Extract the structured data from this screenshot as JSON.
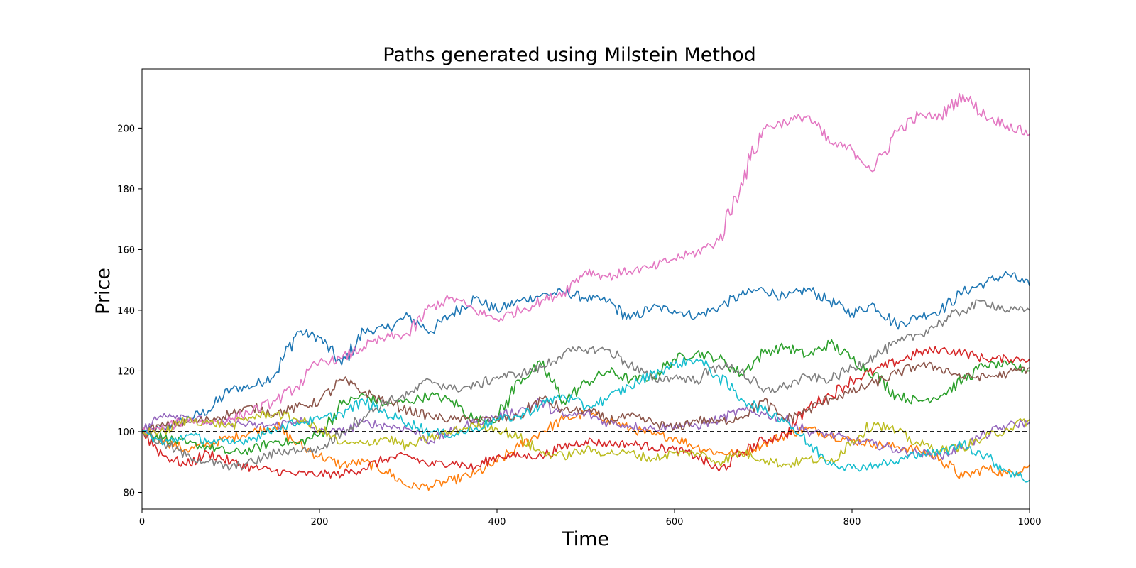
{
  "chart_data": {
    "type": "line",
    "title": "Paths generated using Milstein Method",
    "xlabel": "Time",
    "ylabel": "Price",
    "xlim": [
      0,
      1000
    ],
    "ylim": [
      74.5,
      219.5
    ],
    "xticks": [
      0,
      200,
      400,
      600,
      800,
      1000
    ],
    "yticks": [
      80,
      100,
      120,
      140,
      160,
      180,
      200
    ],
    "grid": false,
    "legend": "none",
    "reference_line": {
      "y": 100,
      "style": "dashed",
      "color": "#000000"
    },
    "series": [
      {
        "color": "#1f77b4",
        "x": [
          0,
          25,
          50,
          75,
          100,
          125,
          150,
          175,
          200,
          225,
          250,
          275,
          300,
          325,
          350,
          375,
          400,
          425,
          450,
          475,
          500,
          525,
          550,
          575,
          600,
          625,
          650,
          675,
          700,
          725,
          750,
          775,
          800,
          825,
          850,
          875,
          900,
          925,
          950,
          975,
          1000
        ],
        "y": [
          100,
          101,
          104,
          107,
          114,
          115,
          119,
          133,
          131,
          122,
          133,
          134,
          138,
          133,
          139,
          144,
          140,
          143,
          145,
          146,
          144,
          143,
          137,
          141,
          140,
          138,
          141,
          145,
          147,
          144,
          147,
          143,
          139,
          142,
          135,
          138,
          140,
          146,
          149,
          152,
          148
        ]
      },
      {
        "color": "#ff7f0e",
        "x": [
          0,
          25,
          50,
          75,
          100,
          125,
          150,
          175,
          200,
          225,
          250,
          275,
          300,
          325,
          350,
          375,
          400,
          425,
          450,
          475,
          500,
          525,
          550,
          575,
          600,
          625,
          650,
          675,
          700,
          725,
          750,
          775,
          800,
          825,
          850,
          875,
          900,
          925,
          950,
          975,
          1000
        ],
        "y": [
          100,
          97,
          94,
          96,
          98,
          100,
          102,
          96,
          92,
          89,
          90,
          87,
          82,
          82,
          84,
          86,
          90,
          95,
          100,
          104,
          106,
          104,
          101,
          99,
          98,
          95,
          93,
          93,
          96,
          99,
          101,
          99,
          97,
          96,
          95,
          94,
          91,
          85,
          88,
          86,
          89
        ]
      },
      {
        "color": "#2ca02c",
        "x": [
          0,
          25,
          50,
          75,
          100,
          125,
          150,
          175,
          200,
          225,
          250,
          275,
          300,
          325,
          350,
          375,
          400,
          425,
          450,
          475,
          500,
          525,
          550,
          575,
          600,
          625,
          650,
          675,
          700,
          725,
          750,
          775,
          800,
          825,
          850,
          875,
          900,
          925,
          950,
          975,
          1000
        ],
        "y": [
          100,
          98,
          96,
          95,
          93,
          94,
          97,
          96,
          99,
          109,
          112,
          109,
          110,
          112,
          110,
          104,
          104,
          117,
          122,
          110,
          116,
          120,
          117,
          118,
          124,
          126,
          124,
          119,
          126,
          128,
          125,
          129,
          124,
          119,
          112,
          110,
          112,
          117,
          122,
          122,
          120
        ]
      },
      {
        "color": "#d62728",
        "x": [
          0,
          25,
          50,
          75,
          100,
          125,
          150,
          175,
          200,
          225,
          250,
          275,
          300,
          325,
          350,
          375,
          400,
          425,
          450,
          475,
          500,
          525,
          550,
          575,
          600,
          625,
          650,
          675,
          700,
          725,
          750,
          775,
          800,
          825,
          850,
          875,
          900,
          925,
          950,
          975,
          1000
        ],
        "y": [
          100,
          92,
          89,
          93,
          90,
          88,
          87,
          86,
          86,
          86,
          88,
          91,
          92,
          89,
          90,
          88,
          92,
          92,
          92,
          95,
          97,
          96,
          96,
          95,
          94,
          92,
          87,
          93,
          97,
          99,
          108,
          112,
          117,
          120,
          123,
          126,
          127,
          126,
          124,
          124,
          124
        ]
      },
      {
        "color": "#9467bd",
        "x": [
          0,
          25,
          50,
          75,
          100,
          125,
          150,
          175,
          200,
          225,
          250,
          275,
          300,
          325,
          350,
          375,
          400,
          425,
          450,
          475,
          500,
          525,
          550,
          575,
          600,
          625,
          650,
          675,
          700,
          725,
          750,
          775,
          800,
          825,
          850,
          875,
          900,
          925,
          950,
          975,
          1000
        ],
        "y": [
          100,
          106,
          105,
          103,
          103,
          102,
          102,
          104,
          100,
          100,
          103,
          102,
          101,
          97,
          100,
          103,
          105,
          107,
          110,
          105,
          106,
          103,
          102,
          101,
          102,
          102,
          104,
          107,
          106,
          104,
          100,
          99,
          97,
          96,
          94,
          93,
          92,
          95,
          99,
          102,
          103
        ]
      },
      {
        "color": "#8c564b",
        "x": [
          0,
          25,
          50,
          75,
          100,
          125,
          150,
          175,
          200,
          225,
          250,
          275,
          300,
          325,
          350,
          375,
          400,
          425,
          450,
          475,
          500,
          525,
          550,
          575,
          600,
          625,
          650,
          675,
          700,
          725,
          750,
          775,
          800,
          825,
          850,
          875,
          900,
          925,
          950,
          975,
          1000
        ],
        "y": [
          100,
          102,
          103,
          104,
          106,
          108,
          106,
          108,
          110,
          117,
          113,
          110,
          107,
          105,
          104,
          104,
          104,
          105,
          111,
          107,
          107,
          104,
          105,
          103,
          101,
          104,
          103,
          105,
          110,
          104,
          107,
          111,
          113,
          116,
          119,
          122,
          121,
          118,
          118,
          119,
          121
        ]
      },
      {
        "color": "#e377c2",
        "x": [
          0,
          25,
          50,
          75,
          100,
          125,
          150,
          175,
          200,
          225,
          250,
          275,
          300,
          325,
          350,
          375,
          400,
          425,
          450,
          475,
          500,
          525,
          550,
          575,
          600,
          625,
          650,
          675,
          700,
          725,
          750,
          775,
          800,
          825,
          850,
          875,
          900,
          925,
          950,
          975,
          1000
        ],
        "y": [
          100,
          101,
          104,
          103,
          104,
          107,
          110,
          115,
          123,
          124,
          128,
          131,
          132,
          141,
          144,
          140,
          137,
          140,
          143,
          146,
          153,
          151,
          153,
          154,
          157,
          159,
          163,
          182,
          200,
          202,
          204,
          195,
          193,
          186,
          199,
          204,
          204,
          211,
          204,
          201,
          198
        ]
      },
      {
        "color": "#7f7f7f",
        "x": [
          0,
          25,
          50,
          75,
          100,
          125,
          150,
          175,
          200,
          225,
          250,
          275,
          300,
          325,
          350,
          375,
          400,
          425,
          450,
          475,
          500,
          525,
          550,
          575,
          600,
          625,
          650,
          675,
          700,
          725,
          750,
          775,
          800,
          825,
          850,
          875,
          900,
          925,
          950,
          975,
          1000
        ],
        "y": [
          100,
          96,
          92,
          90,
          88,
          90,
          93,
          94,
          94,
          100,
          105,
          110,
          112,
          117,
          114,
          115,
          118,
          119,
          121,
          126,
          127,
          127,
          122,
          117,
          118,
          117,
          122,
          120,
          113,
          115,
          118,
          117,
          121,
          125,
          129,
          132,
          136,
          140,
          143,
          140,
          140
        ]
      },
      {
        "color": "#bcbd22",
        "x": [
          0,
          25,
          50,
          75,
          100,
          125,
          150,
          175,
          200,
          225,
          250,
          275,
          300,
          325,
          350,
          375,
          400,
          425,
          450,
          475,
          500,
          525,
          550,
          575,
          600,
          625,
          650,
          675,
          700,
          725,
          750,
          775,
          800,
          825,
          850,
          875,
          900,
          925,
          950,
          975,
          1000
        ],
        "y": [
          100,
          100,
          104,
          103,
          102,
          105,
          106,
          104,
          101,
          96,
          96,
          98,
          95,
          98,
          100,
          102,
          101,
          98,
          93,
          92,
          94,
          93,
          93,
          91,
          93,
          93,
          90,
          93,
          91,
          89,
          91,
          90,
          97,
          103,
          100,
          96,
          94,
          95,
          98,
          101,
          104
        ]
      },
      {
        "color": "#17becf",
        "x": [
          0,
          25,
          50,
          75,
          100,
          125,
          150,
          175,
          200,
          225,
          250,
          275,
          300,
          325,
          350,
          375,
          400,
          425,
          450,
          475,
          500,
          525,
          550,
          575,
          600,
          625,
          650,
          675,
          700,
          725,
          750,
          775,
          800,
          825,
          850,
          875,
          900,
          925,
          950,
          975,
          1000
        ],
        "y": [
          100,
          96,
          99,
          97,
          96,
          98,
          101,
          103,
          104,
          106,
          110,
          106,
          103,
          100,
          99,
          101,
          104,
          105,
          109,
          112,
          108,
          111,
          115,
          119,
          122,
          124,
          118,
          111,
          107,
          104,
          96,
          90,
          88,
          89,
          90,
          93,
          93,
          96,
          92,
          87,
          84
        ]
      }
    ]
  }
}
